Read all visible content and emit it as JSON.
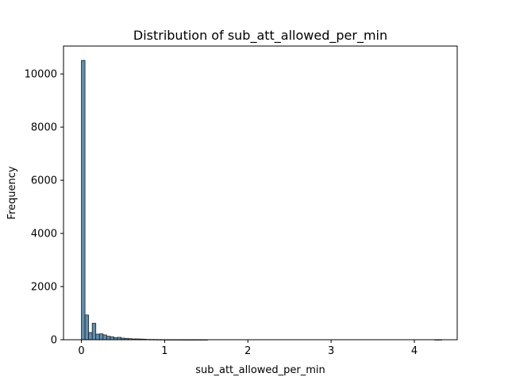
{
  "chart_data": {
    "type": "bar",
    "title": "Distribution of sub_att_allowed_per_min",
    "xlabel": "sub_att_allowed_per_min",
    "ylabel": "Frequency",
    "xlim": [
      -0.215,
      4.515
    ],
    "ylim": [
      0,
      11050
    ],
    "xticks": [
      0,
      1,
      2,
      3,
      4
    ],
    "xtick_labels": [
      "0",
      "1",
      "2",
      "3",
      "4"
    ],
    "yticks": [
      0,
      2000,
      4000,
      6000,
      8000,
      10000
    ],
    "ytick_labels": [
      "0",
      "2000",
      "4000",
      "6000",
      "8000",
      "10000"
    ],
    "grid": false,
    "bin_width": 0.0433,
    "bin_start": 0,
    "values": [
      10510,
      930,
      270,
      620,
      210,
      220,
      180,
      130,
      110,
      80,
      90,
      60,
      50,
      40,
      30,
      30,
      25,
      20,
      12,
      10,
      8,
      6,
      5,
      4,
      3,
      3,
      2,
      2,
      1,
      1,
      1,
      1,
      1,
      1,
      1,
      0,
      0,
      0,
      0,
      0,
      0,
      0,
      0,
      0,
      0,
      0,
      0,
      0,
      0,
      0,
      0,
      0,
      0,
      0,
      0,
      0,
      0,
      0,
      0,
      0,
      0,
      0,
      0,
      0,
      0,
      0,
      0,
      0,
      0,
      0,
      0,
      0,
      0,
      0,
      0,
      0,
      0,
      0,
      0,
      0,
      0,
      0,
      0,
      0,
      0,
      0,
      0,
      0,
      0,
      0,
      0,
      0,
      0,
      0,
      0,
      0,
      0,
      0,
      1,
      1
    ],
    "colors": {
      "bar_fill": "#5f8fb0",
      "bar_edge": "#1f1f1f",
      "axis": "#000000"
    }
  }
}
